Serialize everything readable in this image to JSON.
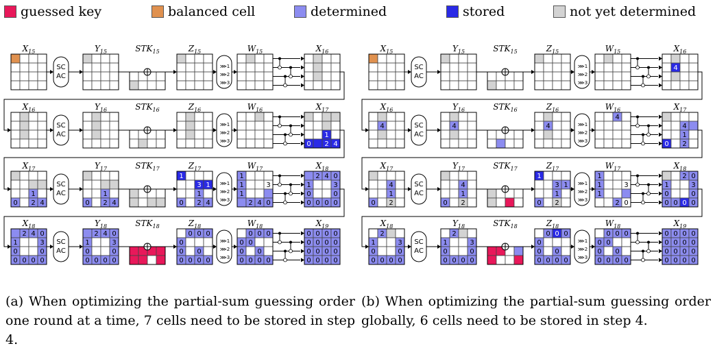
{
  "legend": [
    {
      "key": "guessed",
      "label": "guessed key",
      "color": "#e8185a"
    },
    {
      "key": "balanced",
      "label": "balanced cell",
      "color": "#e0914f"
    },
    {
      "key": "determined",
      "label": "determined",
      "color": "#8c8cf0"
    },
    {
      "key": "stored",
      "label": "stored",
      "color": "#2a2ae6"
    },
    {
      "key": "unknown",
      "label": "not yet determined",
      "color": "#d3d3d3"
    }
  ],
  "ops": {
    "sc_ac": [
      "SC",
      "AC"
    ],
    "xor": "⊕",
    "shifts": [
      "⋙1",
      "⋙2",
      "⋙3"
    ]
  },
  "panels": [
    {
      "id": "a",
      "caption": "(a) When optimizing the partial-sum guessing order one round at a time, 7 cells need to be stored in step 4.",
      "rows": [
        {
          "labels": [
            "X15",
            "Y15",
            "STK15",
            "Z15",
            "W15",
            "X16"
          ],
          "states": [
            [
              "b...",
              "....",
              "....",
              "...."
            ],
            [
              "u...",
              "....",
              "....",
              "...."
            ],
            [
              "....",
              "u..."
            ],
            [
              "u...",
              "....",
              "....",
              "...."
            ],
            [
              ".u..",
              "....",
              "....",
              "...."
            ],
            [
              ".u..",
              ".u..",
              ".u..",
              "...."
            ]
          ],
          "texts": [
            {},
            {},
            {},
            {},
            {},
            {}
          ]
        },
        {
          "labels": [
            "X16",
            "Y16",
            "STK16",
            "Z16",
            "W16",
            "X17"
          ],
          "states": [
            [
              ".u..",
              ".u..",
              ".u..",
              "...."
            ],
            [
              ".u..",
              ".u..",
              ".u..",
              "...."
            ],
            [
              "....",
              ".u.."
            ],
            [
              ".u..",
              ".u..",
              ".u..",
              "...."
            ],
            [
              "..u.",
              "....",
              "....",
              "...."
            ],
            [
              "u.uu",
              "..u.",
              "..s.",
              "ssss"
            ]
          ],
          "texts": [
            {},
            {},
            {},
            {},
            {},
            {
              "3-0": "0",
              "2-2": "1",
              "3-2": "2",
              "3-3": "4"
            }
          ]
        },
        {
          "labels": [
            "X17",
            "Y17",
            "STK17",
            "Z17",
            "W17",
            "X18"
          ],
          "states": [
            [
              "u...",
              "..uu",
              "..d.",
              "d.dd"
            ],
            [
              "u...",
              "..uu",
              "..d.",
              "d.dd"
            ],
            [
              "u...",
              "u.uu"
            ],
            [
              "s...",
              "..ss",
              "..d.",
              "d.dd"
            ],
            [
              "d...",
              "d...",
              "d..d",
              "dddd"
            ],
            [
              "dddd",
              "d..d",
              "d..d",
              "dddd"
            ]
          ],
          "texts": [
            {
              "3-0": "0",
              "2-2": "1",
              "3-2": "2",
              "3-3": "4"
            },
            {
              "3-0": "0",
              "2-2": "1",
              "3-2": "2",
              "3-3": "4"
            },
            {},
            {
              "0-0": "1",
              "1-2": "3",
              "1-3": "1",
              "2-2": "1",
              "3-0": "0",
              "3-2": "2",
              "3-3": "4"
            },
            {
              "0-0": "1",
              "1-0": "1",
              "2-0": "1",
              "1-3": "3",
              "3-1": "2",
              "3-2": "4",
              "3-3": "0"
            },
            {
              "0-1": "2",
              "0-2": "4",
              "0-3": "0",
              "1-0": "1",
              "1-3": "3",
              "2-0": "0",
              "2-3": "0",
              "3-0": "0",
              "3-1": "0",
              "3-2": "0",
              "3-3": "0"
            }
          ]
        },
        {
          "labels": [
            "X18",
            "Y18",
            "STK18",
            "Z18",
            "W18",
            "X19"
          ],
          "states": [
            [
              "dddd",
              "d..d",
              "d..d",
              "dddd"
            ],
            [
              "dddd",
              "d..d",
              "d..d",
              "dddd"
            ],
            [
              "gggg",
              "gg.g"
            ],
            [
              ".ddd",
              "d...",
              "d.d.",
              "dddd"
            ],
            [
              ".ddd",
              "dd..",
              "d.d.",
              "dddd"
            ],
            [
              "dddd",
              "dddd",
              "dddd",
              "dddd"
            ]
          ],
          "texts": [
            {
              "0-1": "2",
              "0-2": "4",
              "0-3": "0",
              "1-0": "1",
              "1-3": "3",
              "2-0": "0",
              "2-3": "0",
              "3-0": "0",
              "3-1": "0",
              "3-2": "0",
              "3-3": "0"
            },
            {
              "0-1": "2",
              "0-2": "4",
              "0-3": "0",
              "1-0": "1",
              "1-3": "3",
              "2-0": "0",
              "2-3": "0",
              "3-0": "0",
              "3-1": "0",
              "3-2": "0",
              "3-3": "0"
            },
            {},
            {
              "0-1": "0",
              "0-2": "0",
              "0-3": "0",
              "1-0": "0",
              "2-0": "0",
              "2-2": "0",
              "3-0": "0",
              "3-1": "0",
              "3-2": "0",
              "3-3": "0"
            },
            {
              "0-1": "0",
              "0-2": "0",
              "0-3": "0",
              "1-0": "0",
              "1-1": "0",
              "2-0": "0",
              "2-2": "0",
              "3-0": "0",
              "3-1": "0",
              "3-2": "0",
              "3-3": "0"
            },
            {
              "0-0": "0",
              "0-1": "0",
              "0-2": "0",
              "0-3": "0",
              "1-0": "0",
              "1-1": "0",
              "1-2": "0",
              "1-3": "0",
              "2-0": "0",
              "2-1": "0",
              "2-2": "0",
              "2-3": "0",
              "3-0": "0",
              "3-1": "0",
              "3-2": "0",
              "3-3": "0"
            }
          ]
        }
      ]
    },
    {
      "id": "b",
      "caption": "(b) When optimizing the partial-sum guessing order globally, 6 cells need to be stored in step 4.",
      "rows": [
        {
          "labels": [
            "X15",
            "Y15",
            "STK15",
            "Z15",
            "W15",
            "X16"
          ],
          "states": [
            [
              "b...",
              "....",
              "....",
              "...."
            ],
            [
              "u...",
              "....",
              "....",
              "...."
            ],
            [
              "....",
              "u..."
            ],
            [
              "u...",
              "....",
              "....",
              "...."
            ],
            [
              ".u..",
              "....",
              "....",
              "...."
            ],
            [
              ".u..",
              ".s..",
              ".u..",
              "...."
            ]
          ],
          "texts": [
            {},
            {},
            {},
            {},
            {},
            {
              "1-1": "4"
            }
          ]
        },
        {
          "labels": [
            "X16",
            "Y16",
            "STK16",
            "Z16",
            "W16",
            "X17"
          ],
          "states": [
            [
              ".u..",
              ".d..",
              ".u..",
              "...."
            ],
            [
              ".u..",
              ".d..",
              ".u..",
              "...."
            ],
            [
              "....",
              ".d.."
            ],
            [
              ".u..",
              ".d..",
              ".u..",
              "...."
            ],
            [
              "..d.",
              "....",
              "....",
              "...."
            ],
            [
              "u...",
              "..dd",
              "..d.",
              "s.d."
            ]
          ],
          "texts": [
            {
              "1-1": "4"
            },
            {
              "1-1": "4"
            },
            {},
            {
              "1-1": "4"
            },
            {
              "0-2": "4"
            },
            {
              "1-2": "4",
              "2-2": "1",
              "3-0": "0",
              "3-2": "2"
            }
          ]
        },
        {
          "labels": [
            "X17",
            "Y17",
            "STK17",
            "Z17",
            "W17",
            "X18"
          ],
          "states": [
            [
              "u...",
              "..d.",
              "..d.",
              "d.u."
            ],
            [
              "u...",
              "..d.",
              "..d.",
              "d.u."
            ],
            [
              "u...",
              "u.g."
            ],
            [
              "s...",
              "..dd",
              "..d.",
              "d.u."
            ],
            [
              "d...",
              "d...",
              "d..d",
              "..d."
            ],
            [
              "u.dd",
              "d..d",
              "d..d",
              "ddsd"
            ]
          ],
          "texts": [
            {
              "1-2": "4",
              "2-2": "1",
              "3-0": "0",
              "3-2": "2"
            },
            {
              "1-2": "4",
              "2-2": "1",
              "3-0": "0",
              "3-2": "2"
            },
            {},
            {
              "0-0": "1",
              "1-2": "3",
              "1-3": "1",
              "2-2": "1",
              "3-0": "0",
              "3-2": "2"
            },
            {
              "0-0": "1",
              "1-0": "1",
              "2-0": "1",
              "1-3": "3",
              "3-2": "2",
              "3-3": "0"
            },
            {
              "0-2": "2",
              "0-3": "0",
              "1-0": "1",
              "1-3": "3",
              "2-0": "0",
              "2-3": "0",
              "3-0": "0",
              "3-1": "0",
              "3-2": "0",
              "3-3": "0"
            }
          ]
        },
        {
          "labels": [
            "X18",
            "Y18",
            "STK18",
            "Z18",
            "W18",
            "X19"
          ],
          "states": [
            [
              ".du.",
              "d..d",
              "d..d",
              "dddd"
            ],
            [
              ".du.",
              "d..d",
              "d..d",
              "dddd"
            ],
            [
              "gg.d",
              "g..g"
            ],
            [
              ".dsd",
              "d...",
              "d.d.",
              "dddd"
            ],
            [
              ".ddd",
              "dd..",
              "d.d.",
              "dddd"
            ],
            [
              "dddd",
              "dddd",
              "dddd",
              "dddd"
            ]
          ],
          "texts": [
            {
              "0-1": "2",
              "1-0": "1",
              "1-3": "3",
              "2-0": "0",
              "2-3": "0",
              "3-0": "0",
              "3-1": "0",
              "3-2": "0",
              "3-3": "0"
            },
            {
              "0-1": "2",
              "1-0": "1",
              "1-3": "3",
              "2-0": "0",
              "2-3": "0",
              "3-0": "0",
              "3-1": "0",
              "3-2": "0",
              "3-3": "0"
            },
            {},
            {
              "0-1": "0",
              "0-2": "0",
              "0-3": "0",
              "1-0": "0",
              "2-0": "0",
              "2-2": "0",
              "3-0": "0",
              "3-1": "0",
              "3-2": "0",
              "3-3": "0"
            },
            {
              "0-1": "0",
              "0-2": "0",
              "0-3": "0",
              "1-0": "0",
              "1-1": "0",
              "2-0": "0",
              "2-2": "0",
              "3-0": "0",
              "3-1": "0",
              "3-2": "0",
              "3-3": "0"
            },
            {
              "0-0": "0",
              "0-1": "0",
              "0-2": "0",
              "0-3": "0",
              "1-0": "0",
              "1-1": "0",
              "1-2": "0",
              "1-3": "0",
              "2-0": "0",
              "2-1": "0",
              "2-2": "0",
              "2-3": "0",
              "3-0": "0",
              "3-1": "0",
              "3-2": "0",
              "3-3": "0"
            }
          ]
        }
      ]
    }
  ]
}
